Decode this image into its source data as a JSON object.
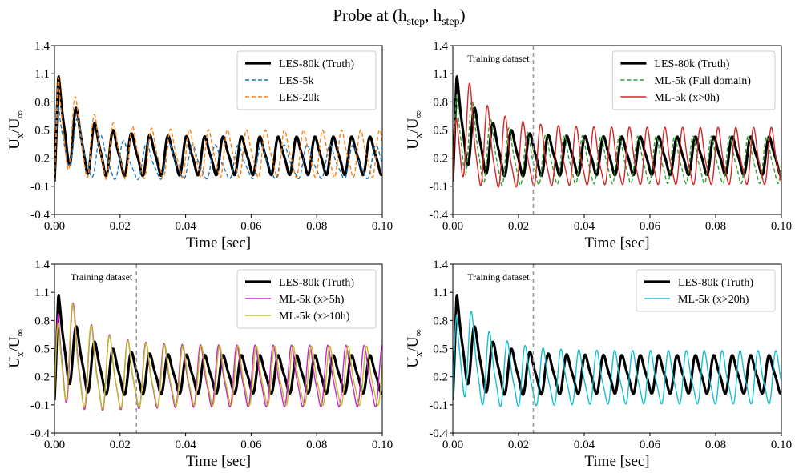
{
  "figure": {
    "suptitle": "Probe at (h",
    "suptitle_sub1": "step",
    "suptitle_mid": ", h",
    "suptitle_sub2": "step",
    "suptitle_end": ")"
  },
  "chart_data": [
    {
      "type": "line",
      "title": "",
      "xlabel": "Time [sec]",
      "ylabel_main": "U",
      "ylabel_sub1": "x",
      "ylabel_sep": "/U",
      "ylabel_sub2": "∞",
      "xlim": [
        0.0,
        0.1
      ],
      "ylim": [
        -0.4,
        1.4
      ],
      "xticks": [
        "0.00",
        "0.02",
        "0.04",
        "0.06",
        "0.08",
        "0.10"
      ],
      "yticks": [
        "-0.4",
        "-0.1",
        "0.2",
        "0.5",
        "0.8",
        "1.1",
        "1.4"
      ],
      "legend_position": "top-right",
      "annotation": null,
      "series": [
        {
          "name": "LES-80k (Truth)",
          "color": "#000000",
          "style": "solid",
          "width": 3.2,
          "period": 0.0056,
          "center": 0.225,
          "amp": 0.185,
          "phase": 0.0
        },
        {
          "name": "LES-5k",
          "color": "#1f77b4",
          "style": "dashed",
          "width": 1.4,
          "period": 0.007,
          "center": 0.15,
          "amp": 0.165,
          "phase": 1.2
        },
        {
          "name": "LES-20k",
          "color": "#ff7f0e",
          "style": "dashed",
          "width": 1.4,
          "period": 0.0058,
          "center": 0.24,
          "amp": 0.23,
          "phase": 0.6
        }
      ]
    },
    {
      "type": "line",
      "title": "",
      "xlabel": "Time [sec]",
      "ylabel_main": "U",
      "ylabel_sub1": "x",
      "ylabel_sep": "/U",
      "ylabel_sub2": "∞",
      "xlim": [
        0.0,
        0.1
      ],
      "ylim": [
        -0.4,
        1.4
      ],
      "xticks": [
        "0.00",
        "0.02",
        "0.04",
        "0.06",
        "0.08",
        "0.10"
      ],
      "yticks": [
        "-0.4",
        "-0.1",
        "0.2",
        "0.5",
        "0.8",
        "1.1",
        "1.4"
      ],
      "legend_position": "top-right",
      "annotation": {
        "text": "Training dataset",
        "x": 0.0245
      },
      "series": [
        {
          "name": "LES-80k (Truth)",
          "color": "#000000",
          "style": "solid",
          "width": 3.2,
          "period": 0.0056,
          "center": 0.225,
          "amp": 0.185,
          "phase": 0.0
        },
        {
          "name": "ML-5k (Full domain)",
          "color": "#2ca02c",
          "style": "dashed",
          "width": 1.4,
          "period": 0.0056,
          "center": 0.17,
          "amp": 0.23,
          "phase": 0.9
        },
        {
          "name": "ML-5k (x>0h)",
          "color": "#d62728",
          "style": "solid",
          "width": 1.4,
          "period": 0.0054,
          "center": 0.2,
          "amp": 0.28,
          "phase": 1.6
        }
      ]
    },
    {
      "type": "line",
      "title": "",
      "xlabel": "Time [sec]",
      "ylabel_main": "U",
      "ylabel_sub1": "x",
      "ylabel_sep": "/U",
      "ylabel_sub2": "∞",
      "xlim": [
        0.0,
        0.1
      ],
      "ylim": [
        -0.4,
        1.4
      ],
      "xticks": [
        "0.00",
        "0.02",
        "0.04",
        "0.06",
        "0.08",
        "0.10"
      ],
      "yticks": [
        "-0.4",
        "-0.1",
        "0.2",
        "0.5",
        "0.8",
        "1.1",
        "1.4"
      ],
      "legend_position": "top-right",
      "annotation": {
        "text": "Training dataset",
        "x": 0.025
      },
      "series": [
        {
          "name": "LES-80k (Truth)",
          "color": "#000000",
          "style": "solid",
          "width": 3.2,
          "period": 0.0056,
          "center": 0.225,
          "amp": 0.185,
          "phase": 0.0
        },
        {
          "name": "ML-5k (x>5h)",
          "color": "#cc22cc",
          "style": "solid",
          "width": 1.4,
          "period": 0.00555,
          "center": 0.19,
          "amp": 0.3,
          "phase": 1.1
        },
        {
          "name": "ML-5k (x>10h)",
          "color": "#bcbd22",
          "style": "solid",
          "width": 1.4,
          "period": 0.0056,
          "center": 0.19,
          "amp": 0.29,
          "phase": 1.3
        }
      ]
    },
    {
      "type": "line",
      "title": "",
      "xlabel": "Time [sec]",
      "ylabel_main": "U",
      "ylabel_sub1": "x",
      "ylabel_sep": "/U",
      "ylabel_sub2": "∞",
      "xlim": [
        0.0,
        0.1
      ],
      "ylim": [
        -0.4,
        1.4
      ],
      "xticks": [
        "0.00",
        "0.02",
        "0.04",
        "0.06",
        "0.08",
        "0.10"
      ],
      "yticks": [
        "-0.4",
        "-0.1",
        "0.2",
        "0.5",
        "0.8",
        "1.1",
        "1.4"
      ],
      "legend_position": "top-right",
      "annotation": {
        "text": "Training dataset",
        "x": 0.0245
      },
      "series": [
        {
          "name": "LES-80k (Truth)",
          "color": "#000000",
          "style": "solid",
          "width": 3.2,
          "period": 0.0056,
          "center": 0.225,
          "amp": 0.185,
          "phase": 0.0
        },
        {
          "name": "ML-5k (x>20h)",
          "color": "#17becf",
          "style": "solid",
          "width": 1.4,
          "period": 0.00545,
          "center": 0.18,
          "amp": 0.26,
          "phase": 1.0
        }
      ]
    }
  ]
}
